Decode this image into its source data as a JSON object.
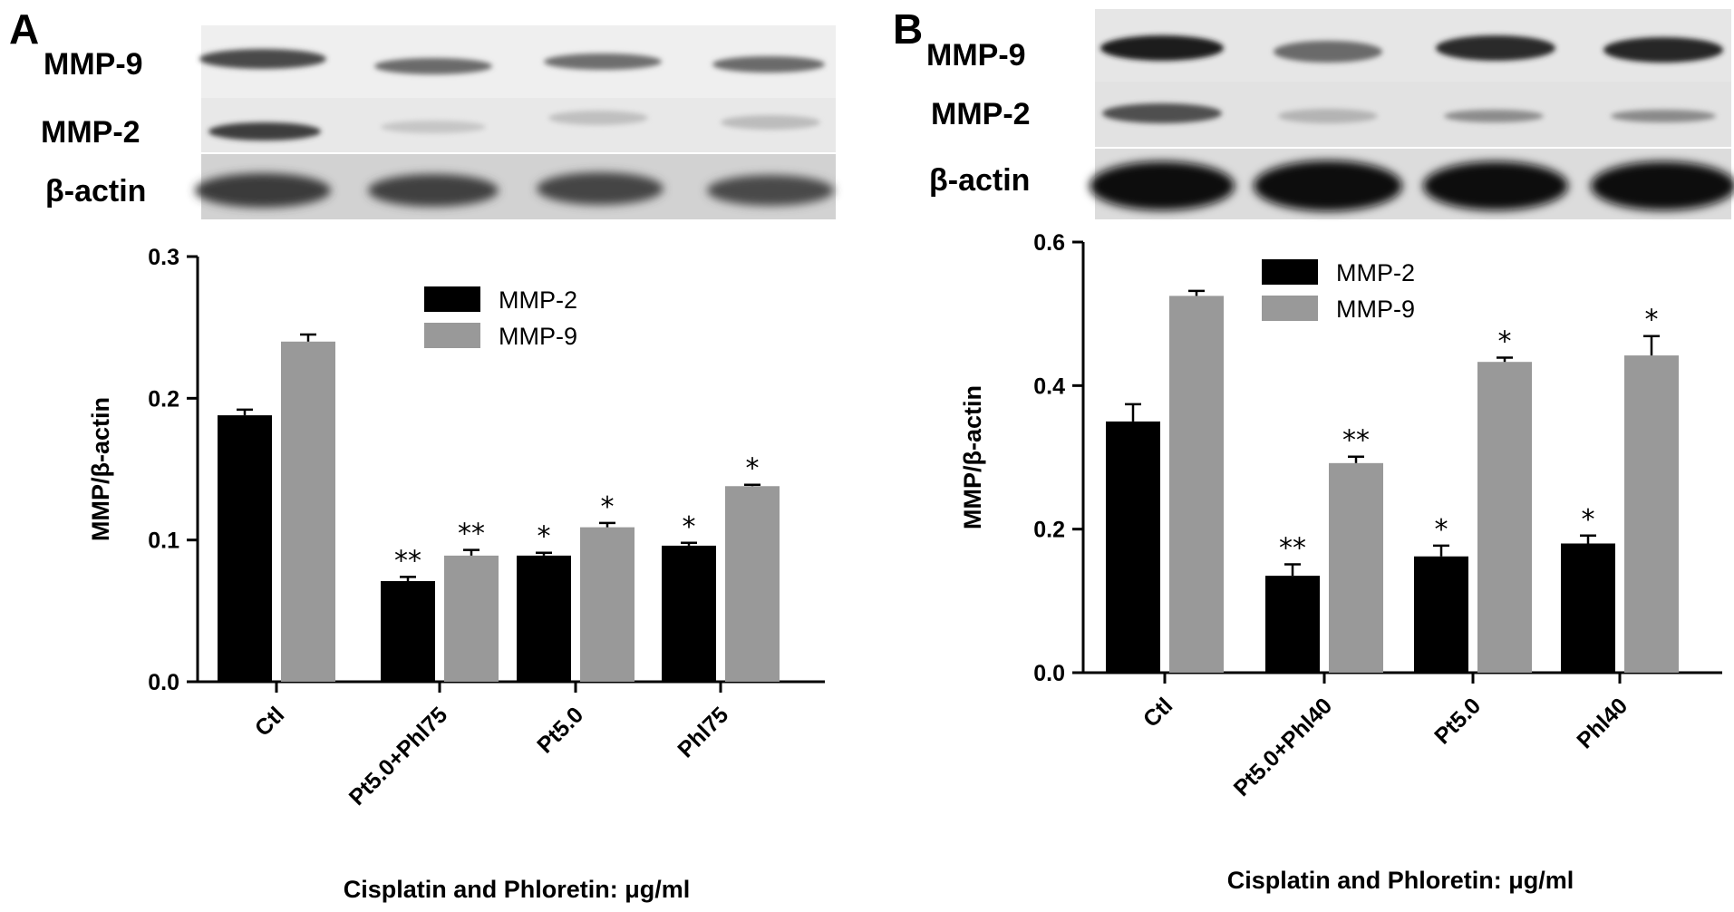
{
  "panels": [
    {
      "letter": "A",
      "blot_labels": [
        "MMP-9",
        "MMP-2",
        "β-actin"
      ],
      "legend": [
        "MMP-2",
        "MMP-9"
      ]
    },
    {
      "letter": "B",
      "blot_labels": [
        "MMP-9",
        "MMP-2",
        "β-actin"
      ],
      "legend": [
        "MMP-2",
        "MMP-9"
      ]
    }
  ],
  "colors": {
    "mmp2": "#000000",
    "mmp9": "#999999"
  },
  "chart_data": [
    {
      "type": "bar",
      "panel": "A",
      "categories": [
        "Ctl",
        "Pt5.0+Phl75",
        "Pt5.0",
        "Phl75"
      ],
      "series": [
        {
          "name": "MMP-2",
          "values": [
            0.188,
            0.071,
            0.089,
            0.096
          ],
          "errors": [
            0.004,
            0.003,
            0.002,
            0.002
          ],
          "significance": [
            "",
            "**",
            "*",
            "*"
          ]
        },
        {
          "name": "MMP-9",
          "values": [
            0.24,
            0.089,
            0.109,
            0.138
          ],
          "errors": [
            0.005,
            0.004,
            0.003,
            0.001
          ],
          "significance": [
            "",
            "**",
            "*",
            "*"
          ]
        }
      ],
      "xlabel": "Cisplatin and Phloretin: μg/ml",
      "ylabel": "MMP/β-actin",
      "ylim": [
        0,
        0.3
      ],
      "yticks": [
        "0.0",
        "0.1",
        "0.2",
        "0.3"
      ],
      "legend_position": "top-right"
    },
    {
      "type": "bar",
      "panel": "B",
      "categories": [
        "Ctl",
        "Pt5.0+Phl40",
        "Pt5.0",
        "Phl40"
      ],
      "series": [
        {
          "name": "MMP-2",
          "values": [
            0.35,
            0.135,
            0.162,
            0.18
          ],
          "errors": [
            0.024,
            0.016,
            0.015,
            0.011
          ],
          "significance": [
            "",
            "**",
            "*",
            "*"
          ]
        },
        {
          "name": "MMP-9",
          "values": [
            0.525,
            0.292,
            0.433,
            0.442
          ],
          "errors": [
            0.007,
            0.009,
            0.006,
            0.027
          ],
          "significance": [
            "",
            "**",
            "*",
            "*"
          ]
        }
      ],
      "xlabel": "Cisplatin and Phloretin: μg/ml",
      "ylabel": "MMP/β-actin",
      "ylim": [
        0,
        0.6
      ],
      "yticks": [
        "0.0",
        "0.2",
        "0.4",
        "0.6"
      ],
      "legend_position": "top-right"
    }
  ]
}
